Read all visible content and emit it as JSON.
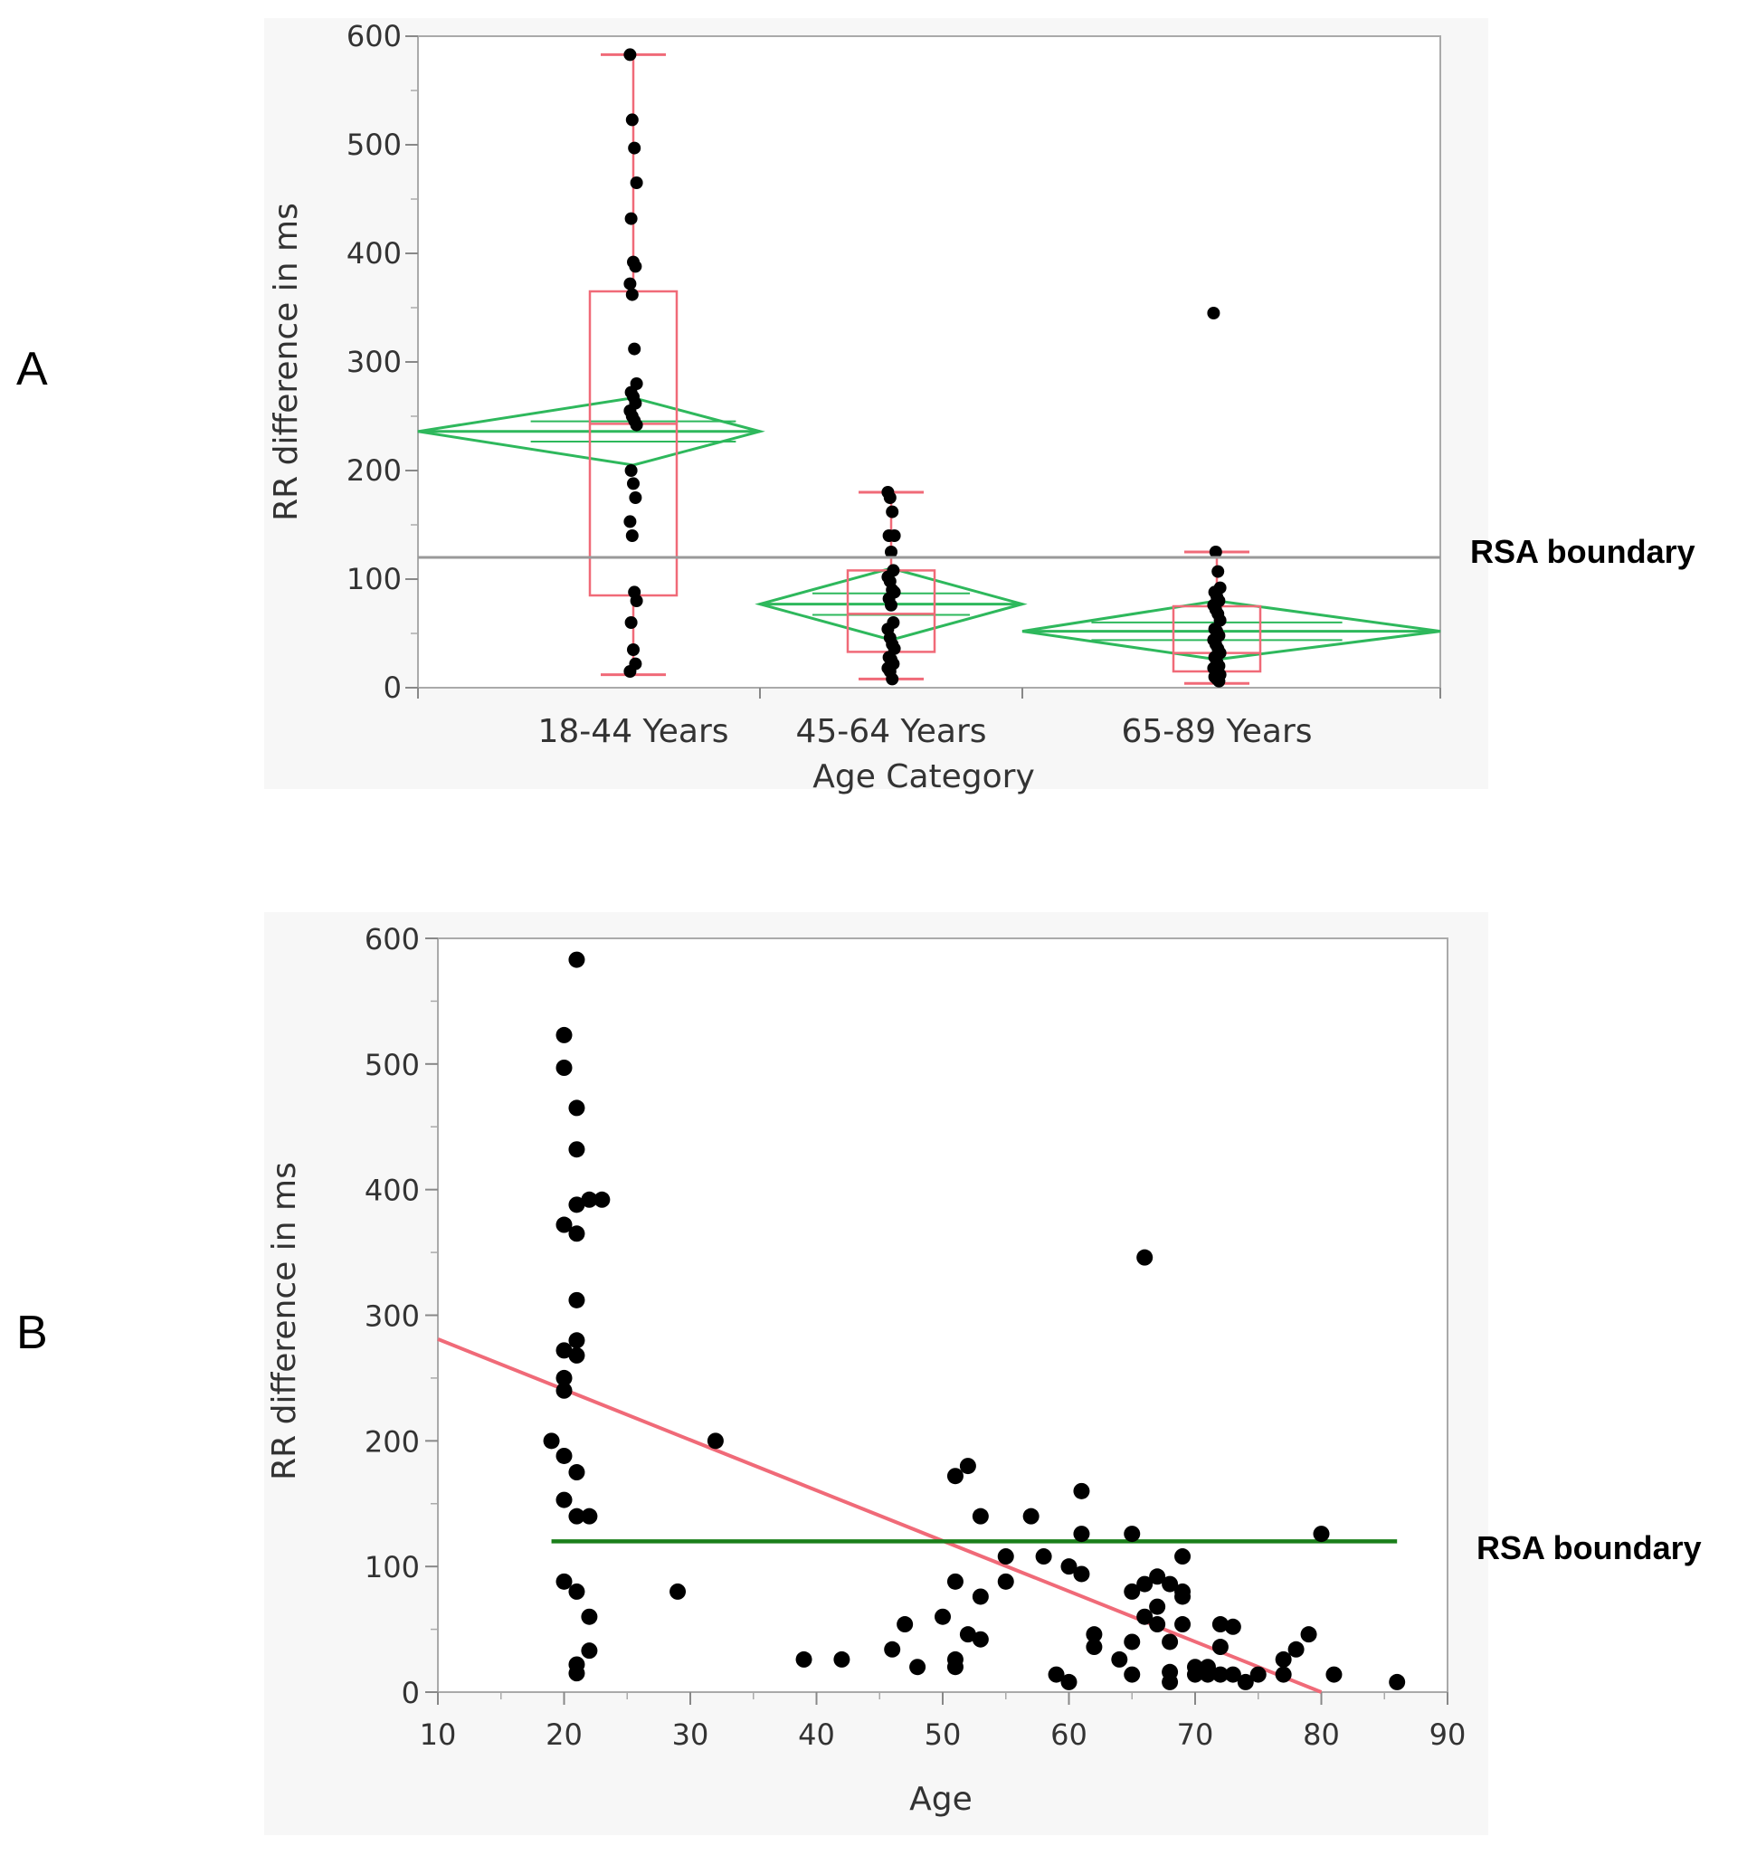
{
  "panel_labels": {
    "a": "A",
    "b": "B"
  },
  "rsa_label": "RSA boundary",
  "colors": {
    "box": "#f06a78",
    "diamond": "#2eb85c",
    "fit": "#f06a78",
    "boundary_a": "#999999",
    "boundary_b": "#1a7f1a",
    "point": "#000000"
  },
  "chart_data": [
    {
      "type": "box",
      "panel": "A",
      "title": "",
      "xlabel": "Age Category",
      "ylabel": "RR difference in ms",
      "ylim": [
        0,
        600
      ],
      "yticks": [
        0,
        100,
        200,
        300,
        400,
        500,
        600
      ],
      "categories": [
        "18-44 Years",
        "45-64 Years",
        "65-89 Years"
      ],
      "rsa_boundary": 120,
      "groups": [
        {
          "name": "18-44 Years",
          "whisker_low": 12,
          "q1": 85,
          "median": 243,
          "q3": 365,
          "whisker_high": 583,
          "mean": 236,
          "ci": [
            205,
            267
          ],
          "points": [
            583,
            523,
            497,
            465,
            432,
            392,
            388,
            372,
            362,
            312,
            280,
            272,
            268,
            262,
            255,
            250,
            246,
            242,
            200,
            188,
            175,
            153,
            140,
            88,
            80,
            60,
            35,
            22,
            15
          ]
        },
        {
          "name": "45-64 Years",
          "whisker_low": 8,
          "q1": 33,
          "median": 68,
          "q3": 108,
          "whisker_high": 180,
          "mean": 77,
          "ci": [
            44,
            110
          ],
          "points": [
            180,
            175,
            162,
            140,
            140,
            125,
            108,
            102,
            98,
            90,
            88,
            82,
            76,
            60,
            54,
            46,
            40,
            36,
            28,
            26,
            22,
            18,
            15,
            8
          ]
        },
        {
          "name": "65-89 Years",
          "whisker_low": 4,
          "q1": 15,
          "median": 32,
          "q3": 75,
          "whisker_high": 125,
          "mean": 52,
          "ci": [
            26,
            80
          ],
          "points": [
            345,
            125,
            107,
            92,
            88,
            84,
            80,
            76,
            72,
            68,
            62,
            54,
            52,
            48,
            44,
            40,
            36,
            32,
            28,
            24,
            20,
            18,
            16,
            14,
            12,
            10,
            8,
            6
          ]
        }
      ]
    },
    {
      "type": "scatter",
      "panel": "B",
      "title": "",
      "xlabel": "Age",
      "ylabel": "RR difference in ms",
      "xlim": [
        10,
        90
      ],
      "ylim": [
        0,
        600
      ],
      "xticks": [
        10,
        20,
        30,
        40,
        50,
        60,
        70,
        80,
        90
      ],
      "yticks": [
        0,
        100,
        200,
        300,
        400,
        500,
        600
      ],
      "rsa_boundary": 120,
      "boundary_x": [
        19,
        86
      ],
      "fit_line": {
        "x": [
          10,
          80
        ],
        "y": [
          281,
          0
        ]
      },
      "x": [
        21,
        20,
        20,
        21,
        21,
        21,
        22,
        23,
        20,
        21,
        21,
        20,
        21,
        20,
        21,
        20,
        19,
        20,
        21,
        20,
        21,
        22,
        20,
        21,
        22,
        21,
        22,
        21,
        32,
        29,
        39,
        42,
        46,
        47,
        48,
        50,
        51,
        51,
        51,
        51,
        52,
        52,
        53,
        53,
        53,
        55,
        55,
        57,
        58,
        59,
        60,
        60,
        61,
        61,
        61,
        62,
        62,
        64,
        65,
        65,
        65,
        65,
        66,
        66,
        66,
        67,
        67,
        67,
        68,
        68,
        68,
        68,
        69,
        69,
        69,
        69,
        70,
        70,
        71,
        71,
        72,
        72,
        72,
        73,
        73,
        74,
        75,
        77,
        77,
        78,
        79,
        80,
        81,
        86
      ],
      "y": [
        583,
        523,
        497,
        465,
        432,
        388,
        392,
        392,
        372,
        365,
        312,
        272,
        280,
        250,
        268,
        240,
        200,
        188,
        175,
        153,
        140,
        140,
        88,
        80,
        60,
        22,
        33,
        15,
        200,
        80,
        26,
        26,
        34,
        54,
        20,
        60,
        172,
        88,
        26,
        20,
        180,
        46,
        140,
        76,
        42,
        108,
        88,
        140,
        108,
        14,
        100,
        8,
        160,
        126,
        94,
        46,
        36,
        26,
        126,
        80,
        40,
        14,
        346,
        86,
        60,
        92,
        68,
        54,
        86,
        40,
        16,
        8,
        108,
        80,
        76,
        54,
        20,
        14,
        20,
        14,
        54,
        36,
        14,
        52,
        14,
        8,
        14,
        26,
        14,
        34,
        46,
        126,
        14,
        8
      ]
    }
  ]
}
